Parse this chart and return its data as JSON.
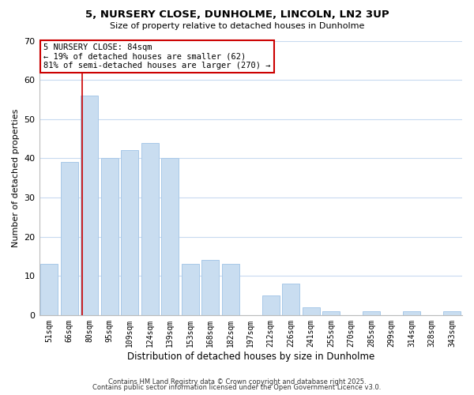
{
  "title_line1": "5, NURSERY CLOSE, DUNHOLME, LINCOLN, LN2 3UP",
  "title_line2": "Size of property relative to detached houses in Dunholme",
  "xlabel": "Distribution of detached houses by size in Dunholme",
  "ylabel": "Number of detached properties",
  "bar_labels": [
    "51sqm",
    "66sqm",
    "80sqm",
    "95sqm",
    "109sqm",
    "124sqm",
    "139sqm",
    "153sqm",
    "168sqm",
    "182sqm",
    "197sqm",
    "212sqm",
    "226sqm",
    "241sqm",
    "255sqm",
    "270sqm",
    "285sqm",
    "299sqm",
    "314sqm",
    "328sqm",
    "343sqm"
  ],
  "bar_values": [
    13,
    39,
    56,
    40,
    42,
    44,
    40,
    13,
    14,
    13,
    0,
    5,
    8,
    2,
    1,
    0,
    1,
    0,
    1,
    0,
    1
  ],
  "bar_color": "#c9ddf0",
  "bar_edge_color": "#a8c8e8",
  "vline_color": "#cc0000",
  "ylim": [
    0,
    70
  ],
  "yticks": [
    0,
    10,
    20,
    30,
    40,
    50,
    60,
    70
  ],
  "annotation_title": "5 NURSERY CLOSE: 84sqm",
  "annotation_line1": "← 19% of detached houses are smaller (62)",
  "annotation_line2": "81% of semi-detached houses are larger (270) →",
  "annotation_box_color": "#ffffff",
  "annotation_box_edge": "#cc0000",
  "footer_line1": "Contains HM Land Registry data © Crown copyright and database right 2025.",
  "footer_line2": "Contains public sector information licensed under the Open Government Licence v3.0.",
  "background_color": "#ffffff",
  "grid_color": "#c8daf0"
}
